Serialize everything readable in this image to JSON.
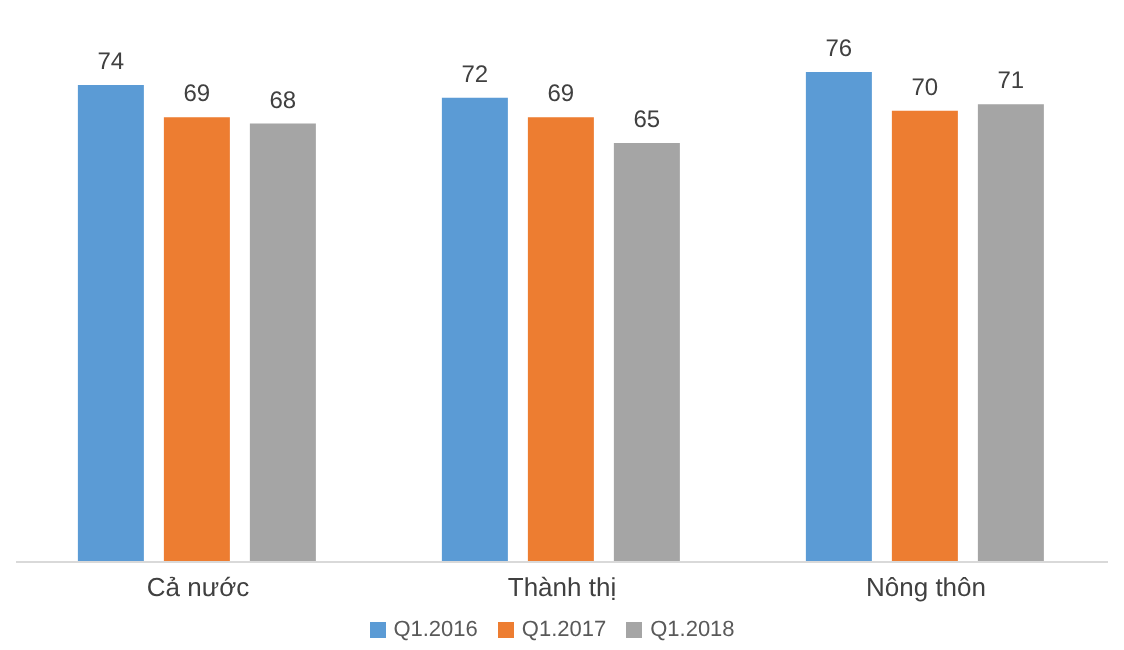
{
  "chart_data": {
    "type": "bar",
    "categories": [
      "Cả nước",
      "Thành thị",
      "Nông thôn"
    ],
    "series": [
      {
        "name": "Q1.2016",
        "color": "#5b9bd5",
        "values": [
          74,
          72,
          76
        ]
      },
      {
        "name": "Q1.2017",
        "color": "#ed7d31",
        "values": [
          69,
          69,
          70
        ]
      },
      {
        "name": "Q1.2018",
        "color": "#a5a5a5",
        "values": [
          68,
          65,
          71
        ]
      }
    ],
    "data_labels": true,
    "legend": "bottom",
    "grid": false
  }
}
